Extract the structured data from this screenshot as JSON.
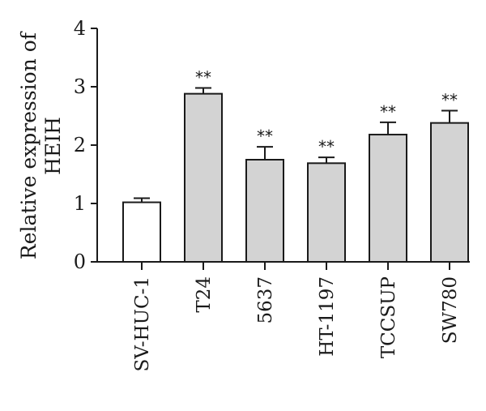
{
  "chart_data": {
    "type": "bar",
    "ylabel_lines": [
      "Relative expression of",
      "HEIH"
    ],
    "ylim": [
      0,
      4
    ],
    "yticks": [
      "0",
      "1",
      "2",
      "3",
      "4"
    ],
    "categories": [
      "SV-HUC-1",
      "T24",
      "5637",
      "HT-1197",
      "TCCSUP",
      "SW780"
    ],
    "values": [
      1.02,
      2.88,
      1.75,
      1.69,
      2.18,
      2.38
    ],
    "errors": [
      0.07,
      0.1,
      0.22,
      0.1,
      0.21,
      0.21
    ],
    "significance": [
      "",
      "**",
      "**",
      "**",
      "**",
      "**"
    ],
    "colors": [
      "#ffffff",
      "#d3d3d3",
      "#d3d3d3",
      "#d3d3d3",
      "#d3d3d3",
      "#d3d3d3"
    ]
  }
}
